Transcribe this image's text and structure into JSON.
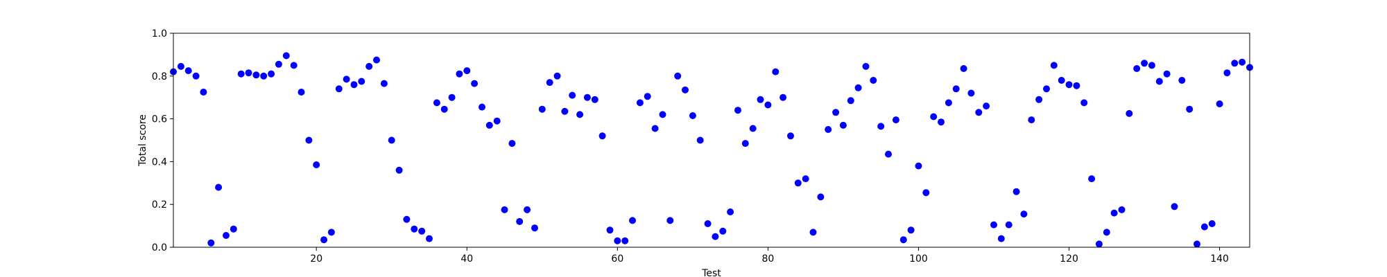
{
  "chart_data": {
    "type": "scatter",
    "title": "",
    "xlabel": "Test",
    "ylabel": "Total score",
    "xlim": [
      1,
      144
    ],
    "ylim": [
      0.0,
      1.0
    ],
    "xticks": [
      20,
      40,
      60,
      80,
      100,
      120,
      140
    ],
    "xtick_labels": [
      "20",
      "40",
      "60",
      "80",
      "100",
      "120",
      "140"
    ],
    "yticks": [
      0.0,
      0.2,
      0.4,
      0.6,
      0.8,
      1.0
    ],
    "ytick_labels": [
      "0.0",
      "0.2",
      "0.4",
      "0.6",
      "0.8",
      "1.0"
    ],
    "grid": false,
    "marker_color": "#0000ff",
    "series": [
      {
        "x": [
          1,
          2,
          3,
          4,
          5,
          6,
          7,
          8,
          9,
          10,
          11,
          12,
          13,
          14,
          15,
          16,
          17,
          18,
          19,
          20,
          21,
          22,
          23,
          24,
          25,
          26,
          27,
          28,
          29,
          30,
          31,
          32,
          33,
          34,
          35,
          36,
          37,
          38,
          39,
          40,
          41,
          42,
          43,
          44,
          45,
          46,
          47,
          48,
          49,
          50,
          51,
          52,
          53,
          54,
          55,
          56,
          57,
          58,
          59,
          60,
          61,
          62,
          63,
          64,
          65,
          66,
          67,
          68,
          69,
          70,
          71,
          72,
          73,
          74,
          75,
          76,
          77,
          78,
          79,
          80,
          81,
          82,
          83,
          84,
          85,
          86,
          87,
          88,
          89,
          90,
          91,
          92,
          93,
          94,
          95,
          96,
          97,
          98,
          99,
          100,
          101,
          102,
          103,
          104,
          105,
          106,
          107,
          108,
          109,
          110,
          111,
          112,
          113,
          114,
          115,
          116,
          117,
          118,
          119,
          120,
          121,
          122,
          123,
          124,
          125,
          126,
          127,
          128,
          129,
          130,
          131,
          132,
          133,
          134,
          135,
          136,
          137,
          138,
          139,
          140,
          141,
          142,
          143,
          144
        ],
        "y": [
          0.82,
          0.845,
          0.825,
          0.8,
          0.725,
          0.02,
          0.28,
          0.055,
          0.085,
          0.81,
          0.815,
          0.805,
          0.8,
          0.81,
          0.855,
          0.895,
          0.85,
          0.725,
          0.5,
          0.385,
          0.035,
          0.07,
          0.74,
          0.785,
          0.76,
          0.775,
          0.845,
          0.875,
          0.765,
          0.5,
          0.36,
          0.13,
          0.085,
          0.075,
          0.04,
          0.675,
          0.645,
          0.7,
          0.81,
          0.825,
          0.765,
          0.655,
          0.57,
          0.59,
          0.175,
          0.485,
          0.12,
          0.175,
          0.09,
          0.645,
          0.77,
          0.8,
          0.635,
          0.71,
          0.62,
          0.7,
          0.69,
          0.52,
          0.08,
          0.03,
          0.03,
          0.125,
          0.675,
          0.705,
          0.555,
          0.62,
          0.125,
          0.8,
          0.735,
          0.615,
          0.5,
          0.11,
          0.05,
          0.075,
          0.165,
          0.64,
          0.485,
          0.555,
          0.69,
          0.665,
          0.82,
          0.7,
          0.52,
          0.3,
          0.32,
          0.07,
          0.235,
          0.55,
          0.63,
          0.57,
          0.685,
          0.745,
          0.845,
          0.78,
          0.565,
          0.435,
          0.595,
          0.035,
          0.08,
          0.38,
          0.255,
          0.61,
          0.585,
          0.675,
          0.74,
          0.835,
          0.72,
          0.63,
          0.66,
          0.105,
          0.04,
          0.105,
          0.26,
          0.155,
          0.595,
          0.69,
          0.74,
          0.85,
          0.78,
          0.76,
          0.755,
          0.675,
          0.32,
          0.015,
          0.07,
          0.16,
          0.175,
          0.625,
          0.835,
          0.86,
          0.85,
          0.775,
          0.81,
          0.19,
          0.78,
          0.645,
          0.015,
          0.095,
          0.11,
          0.67,
          0.815,
          0.86,
          0.865,
          0.84
        ]
      }
    ]
  }
}
